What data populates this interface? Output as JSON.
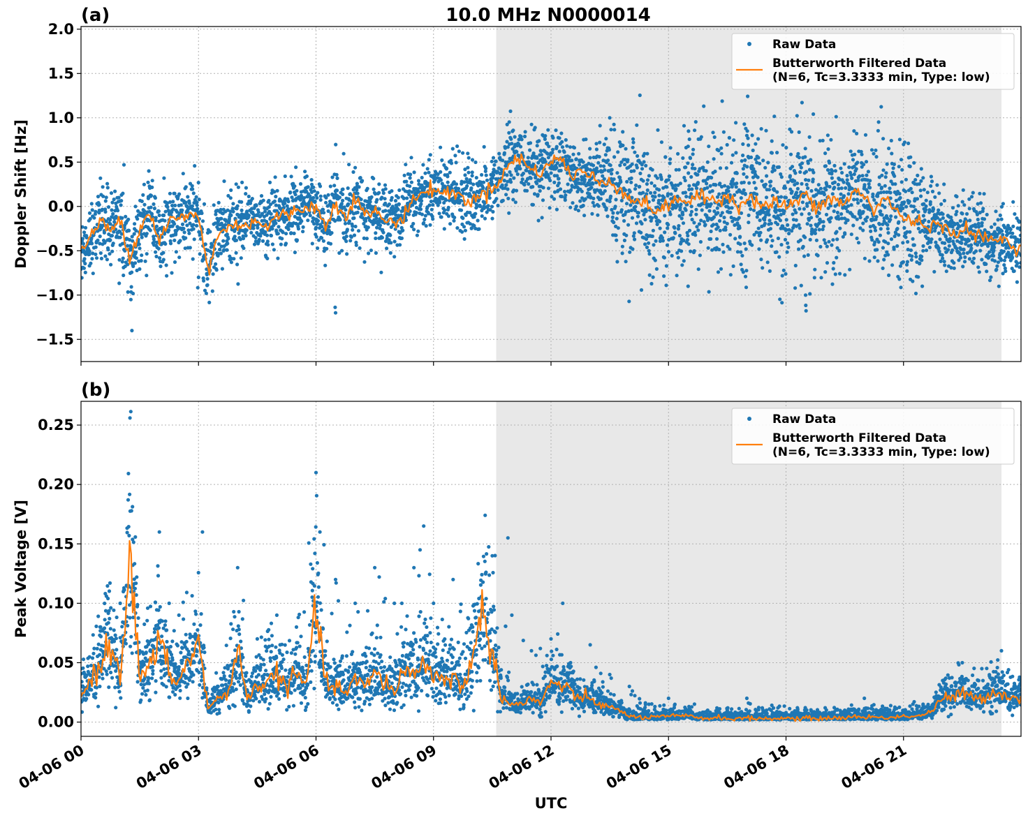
{
  "figure": {
    "title": "10.0 MHz N0000014",
    "xlabel": "UTC"
  },
  "colors": {
    "raw": "#1f77b4",
    "filtered": "#ff7f0e",
    "shade": "#e8e8e8",
    "grid": "#b0b0b0"
  },
  "chart_data": [
    {
      "type": "scatter",
      "panel_label": "(a)",
      "ylabel": "Doppler Shift [Hz]",
      "xlim": [
        0,
        24
      ],
      "ylim": [
        -1.75,
        2.03
      ],
      "x_unit": "hours UTC on 04-06",
      "x_ticks": [
        0,
        3,
        6,
        9,
        12,
        15,
        18,
        21
      ],
      "y_ticks": [
        -1.5,
        -1.0,
        -0.5,
        0.0,
        0.5,
        1.0,
        1.5,
        2.0
      ],
      "y_tick_labels": [
        "−1.5",
        "−1.0",
        "−0.5",
        "0.0",
        "0.5",
        "1.0",
        "1.5",
        "2.0"
      ],
      "shaded_span": [
        10.6,
        23.5
      ],
      "grid": true,
      "legend_position": "upper right",
      "series": [
        {
          "name": "Raw Data",
          "kind": "scatter",
          "x": [
            0,
            0.5,
            1.0,
            1.3,
            1.5,
            2.0,
            2.5,
            3.0,
            3.5,
            4.0,
            4.5,
            5.0,
            5.5,
            6.0,
            6.5,
            7.0,
            7.5,
            8.0,
            8.5,
            9.0,
            9.5,
            10.0,
            10.5,
            11.0,
            11.5,
            12.0,
            12.5,
            13.0,
            13.5,
            14.0,
            14.5,
            15.0,
            15.5,
            16.0,
            16.5,
            17.0,
            17.5,
            18.0,
            18.5,
            19.0,
            19.5,
            20.0,
            20.5,
            21.0,
            21.5,
            22.0,
            22.5,
            23.0,
            23.5,
            24.0
          ],
          "y": [
            -0.5,
            -0.25,
            -0.35,
            -1.4,
            -0.3,
            -0.1,
            -0.1,
            -0.8,
            -0.2,
            -0.25,
            -0.1,
            -0.05,
            0.0,
            -0.05,
            -1.2,
            0.1,
            -0.1,
            -0.15,
            0.2,
            0.15,
            0.05,
            0.1,
            0.25,
            0.5,
            0.4,
            0.5,
            0.3,
            0.2,
            1.0,
            0.1,
            -0.5,
            0.3,
            -0.9,
            0.5,
            0.0,
            0.8,
            -0.4,
            0.1,
            -1.0,
            0.6,
            -0.3,
            0.1,
            -0.6,
            0.7,
            -0.5,
            -0.25,
            -0.35,
            -0.6,
            -0.5,
            -0.55
          ]
        },
        {
          "name": "Butterworth Filtered Data\n(N=6, Tc=3.3333 min, Type: low)",
          "kind": "line",
          "x": [
            0,
            0.25,
            0.5,
            0.75,
            1.0,
            1.25,
            1.5,
            1.75,
            2.0,
            2.25,
            2.5,
            2.75,
            3.0,
            3.25,
            3.5,
            3.75,
            4.0,
            4.25,
            4.5,
            4.75,
            5.0,
            5.25,
            5.5,
            5.75,
            6.0,
            6.25,
            6.5,
            6.75,
            7.0,
            7.25,
            7.5,
            7.75,
            8.0,
            8.25,
            8.5,
            8.75,
            9.0,
            9.25,
            9.5,
            9.75,
            10.0,
            10.25,
            10.5,
            10.75,
            11.0,
            11.25,
            11.5,
            11.75,
            12.0,
            12.25,
            12.5,
            12.75,
            13.0,
            13.25,
            13.5,
            13.75,
            14.0,
            14.25,
            14.5,
            14.75,
            15.0,
            15.25,
            15.5,
            15.75,
            16.0,
            16.25,
            16.5,
            16.75,
            17.0,
            17.25,
            17.5,
            17.75,
            18.0,
            18.25,
            18.5,
            18.75,
            19.0,
            19.25,
            19.5,
            19.75,
            20.0,
            20.25,
            20.5,
            20.75,
            21.0,
            21.25,
            21.5,
            21.75,
            22.0,
            22.25,
            22.5,
            22.75,
            23.0,
            23.25,
            23.5,
            23.75,
            24.0
          ],
          "y": [
            -0.5,
            -0.35,
            -0.15,
            -0.3,
            -0.1,
            -0.6,
            -0.25,
            -0.05,
            -0.4,
            -0.15,
            -0.15,
            -0.1,
            -0.1,
            -0.75,
            -0.3,
            -0.25,
            -0.2,
            -0.2,
            -0.15,
            -0.25,
            -0.1,
            -0.1,
            -0.05,
            0.0,
            0.0,
            -0.25,
            0.05,
            -0.1,
            0.1,
            -0.1,
            -0.05,
            -0.15,
            -0.2,
            -0.1,
            0.1,
            0.15,
            0.2,
            0.15,
            0.15,
            0.1,
            0.05,
            0.15,
            0.2,
            0.35,
            0.5,
            0.55,
            0.4,
            0.4,
            0.5,
            0.55,
            0.35,
            0.4,
            0.35,
            0.25,
            0.3,
            0.2,
            0.1,
            0.05,
            0.0,
            -0.05,
            0.0,
            0.1,
            0.05,
            0.1,
            0.1,
            0.05,
            0.15,
            0.0,
            0.1,
            0.05,
            0.0,
            0.05,
            0.0,
            0.05,
            0.15,
            -0.05,
            0.05,
            0.1,
            0.0,
            0.2,
            0.1,
            -0.05,
            0.1,
            0.0,
            -0.15,
            -0.15,
            -0.2,
            -0.2,
            -0.25,
            -0.3,
            -0.25,
            -0.3,
            -0.35,
            -0.4,
            -0.35,
            -0.45,
            -0.45
          ]
        }
      ]
    },
    {
      "type": "scatter",
      "panel_label": "(b)",
      "ylabel": "Peak Voltage [V]",
      "xlim": [
        0,
        24
      ],
      "ylim": [
        -0.012,
        0.27
      ],
      "x_unit": "hours UTC on 04-06",
      "x_ticks": [
        0,
        3,
        6,
        9,
        12,
        15,
        18,
        21
      ],
      "x_tick_labels": [
        "04-06 00",
        "04-06 03",
        "04-06 06",
        "04-06 09",
        "04-06 12",
        "04-06 15",
        "04-06 18",
        "04-06 21"
      ],
      "y_ticks": [
        0.0,
        0.05,
        0.1,
        0.15,
        0.2,
        0.25
      ],
      "y_tick_labels": [
        "0.00",
        "0.05",
        "0.10",
        "0.15",
        "0.20",
        "0.25"
      ],
      "shaded_span": [
        10.6,
        23.5
      ],
      "grid": true,
      "legend_position": "upper right",
      "series": [
        {
          "name": "Raw Data",
          "kind": "scatter",
          "x": [
            0,
            0.5,
            1.0,
            1.25,
            1.5,
            2.0,
            2.25,
            2.5,
            3.0,
            3.1,
            3.5,
            4.0,
            4.5,
            5.0,
            5.5,
            6.0,
            6.1,
            6.5,
            7.0,
            7.5,
            8.0,
            8.5,
            8.75,
            9.0,
            9.5,
            10.0,
            10.5,
            10.9,
            11.0,
            11.5,
            12.0,
            12.3,
            12.5,
            13.0,
            13.5,
            14.0,
            14.5,
            15.0,
            15.5,
            16.0,
            16.5,
            17.0,
            17.5,
            18.0,
            18.5,
            19.0,
            19.5,
            20.0,
            20.5,
            21.0,
            21.5,
            22.0,
            22.5,
            23.0,
            23.5,
            24.0
          ],
          "y": [
            0.045,
            0.08,
            0.1,
            0.256,
            0.06,
            0.16,
            0.1,
            0.09,
            0.07,
            0.16,
            0.03,
            0.13,
            0.07,
            0.09,
            0.08,
            0.21,
            0.16,
            0.12,
            0.1,
            0.13,
            0.1,
            0.13,
            0.165,
            0.1,
            0.12,
            0.08,
            0.14,
            0.155,
            0.09,
            0.06,
            0.07,
            0.1,
            0.05,
            0.065,
            0.04,
            0.03,
            0.015,
            0.02,
            0.01,
            0.01,
            0.01,
            0.02,
            0.01,
            0.008,
            0.008,
            0.012,
            0.01,
            0.02,
            0.01,
            0.01,
            0.015,
            0.035,
            0.05,
            0.045,
            0.06,
            0.035
          ]
        },
        {
          "name": "Butterworth Filtered Data\n(N=6, Tc=3.3333 min, Type: low)",
          "kind": "line",
          "x": [
            0,
            0.25,
            0.5,
            0.75,
            1.0,
            1.25,
            1.5,
            1.75,
            2.0,
            2.25,
            2.5,
            2.75,
            3.0,
            3.25,
            3.5,
            3.75,
            4.0,
            4.25,
            4.5,
            4.75,
            5.0,
            5.25,
            5.5,
            5.75,
            6.0,
            6.25,
            6.5,
            6.75,
            7.0,
            7.25,
            7.5,
            7.75,
            8.0,
            8.25,
            8.5,
            8.75,
            9.0,
            9.25,
            9.5,
            9.75,
            10.0,
            10.25,
            10.5,
            10.75,
            11.0,
            11.25,
            11.5,
            11.75,
            12.0,
            12.25,
            12.5,
            12.75,
            13.0,
            13.25,
            13.5,
            13.75,
            14.0,
            14.25,
            14.5,
            14.75,
            15.0,
            15.25,
            15.5,
            15.75,
            16.0,
            16.25,
            16.5,
            16.75,
            17.0,
            17.25,
            17.5,
            17.75,
            18.0,
            18.25,
            18.5,
            18.75,
            19.0,
            19.25,
            19.5,
            19.75,
            20.0,
            20.25,
            20.5,
            20.75,
            21.0,
            21.25,
            21.5,
            21.75,
            22.0,
            22.25,
            22.5,
            22.75,
            23.0,
            23.25,
            23.5,
            23.75,
            24.0
          ],
          "y": [
            0.022,
            0.035,
            0.05,
            0.065,
            0.04,
            0.146,
            0.035,
            0.045,
            0.07,
            0.04,
            0.035,
            0.05,
            0.07,
            0.01,
            0.02,
            0.025,
            0.06,
            0.02,
            0.03,
            0.035,
            0.04,
            0.03,
            0.04,
            0.03,
            0.1,
            0.03,
            0.03,
            0.025,
            0.035,
            0.03,
            0.04,
            0.035,
            0.025,
            0.045,
            0.04,
            0.05,
            0.04,
            0.035,
            0.04,
            0.025,
            0.06,
            0.09,
            0.06,
            0.02,
            0.015,
            0.015,
            0.02,
            0.015,
            0.035,
            0.03,
            0.025,
            0.02,
            0.02,
            0.015,
            0.012,
            0.01,
            0.005,
            0.004,
            0.004,
            0.004,
            0.005,
            0.005,
            0.005,
            0.004,
            0.003,
            0.004,
            0.003,
            0.003,
            0.003,
            0.003,
            0.003,
            0.003,
            0.003,
            0.003,
            0.003,
            0.003,
            0.003,
            0.004,
            0.003,
            0.005,
            0.004,
            0.004,
            0.004,
            0.004,
            0.005,
            0.005,
            0.006,
            0.01,
            0.02,
            0.02,
            0.025,
            0.02,
            0.02,
            0.025,
            0.025,
            0.02,
            0.02
          ]
        }
      ]
    }
  ]
}
